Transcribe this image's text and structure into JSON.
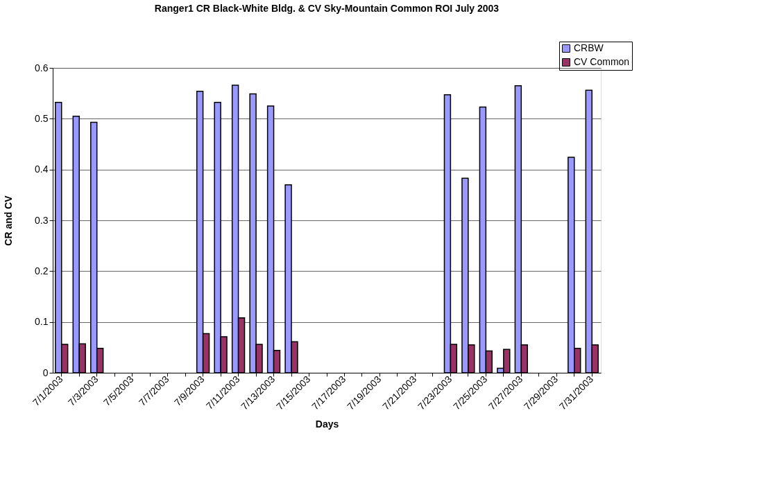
{
  "chart_data": {
    "type": "bar",
    "title": "Ranger1 CR Black-White Bldg. & CV Sky-Mountain Common ROI July 2003",
    "xlabel": "Days",
    "ylabel": "CR and CV",
    "categories": [
      "7/1/2003",
      null,
      "7/3/2003",
      null,
      "7/5/2003",
      null,
      "7/7/2003",
      null,
      "7/9/2003",
      null,
      "7/11/2003",
      null,
      "7/13/2003",
      null,
      "7/15/2003",
      null,
      "7/17/2003",
      null,
      "7/19/2003",
      null,
      "7/21/2003",
      null,
      "7/23/2003",
      null,
      "7/25/2003",
      null,
      "7/27/2003",
      null,
      "7/29/2003",
      null,
      "7/31/2003"
    ],
    "series": [
      {
        "name": "CRBW",
        "color": "#9999ff",
        "values": [
          0.532,
          0.505,
          0.493,
          null,
          null,
          null,
          null,
          null,
          0.554,
          0.532,
          0.566,
          0.549,
          0.525,
          0.37,
          null,
          null,
          null,
          null,
          null,
          null,
          null,
          null,
          0.547,
          0.383,
          0.523,
          0.009,
          0.565,
          null,
          null,
          0.424,
          0.556
        ]
      },
      {
        "name": "CV Common",
        "color": "#993366",
        "values": [
          0.056,
          0.057,
          0.048,
          null,
          null,
          null,
          null,
          null,
          0.077,
          0.071,
          0.108,
          0.056,
          0.044,
          0.061,
          null,
          null,
          null,
          null,
          null,
          null,
          null,
          null,
          0.056,
          0.055,
          0.043,
          0.046,
          0.055,
          null,
          null,
          0.048,
          0.055
        ]
      }
    ],
    "ylim": [
      0,
      0.6
    ],
    "yticks": [
      0,
      0.1,
      0.2,
      0.3,
      0.4,
      0.5,
      0.6
    ],
    "grid": "y",
    "legend": "top right"
  }
}
